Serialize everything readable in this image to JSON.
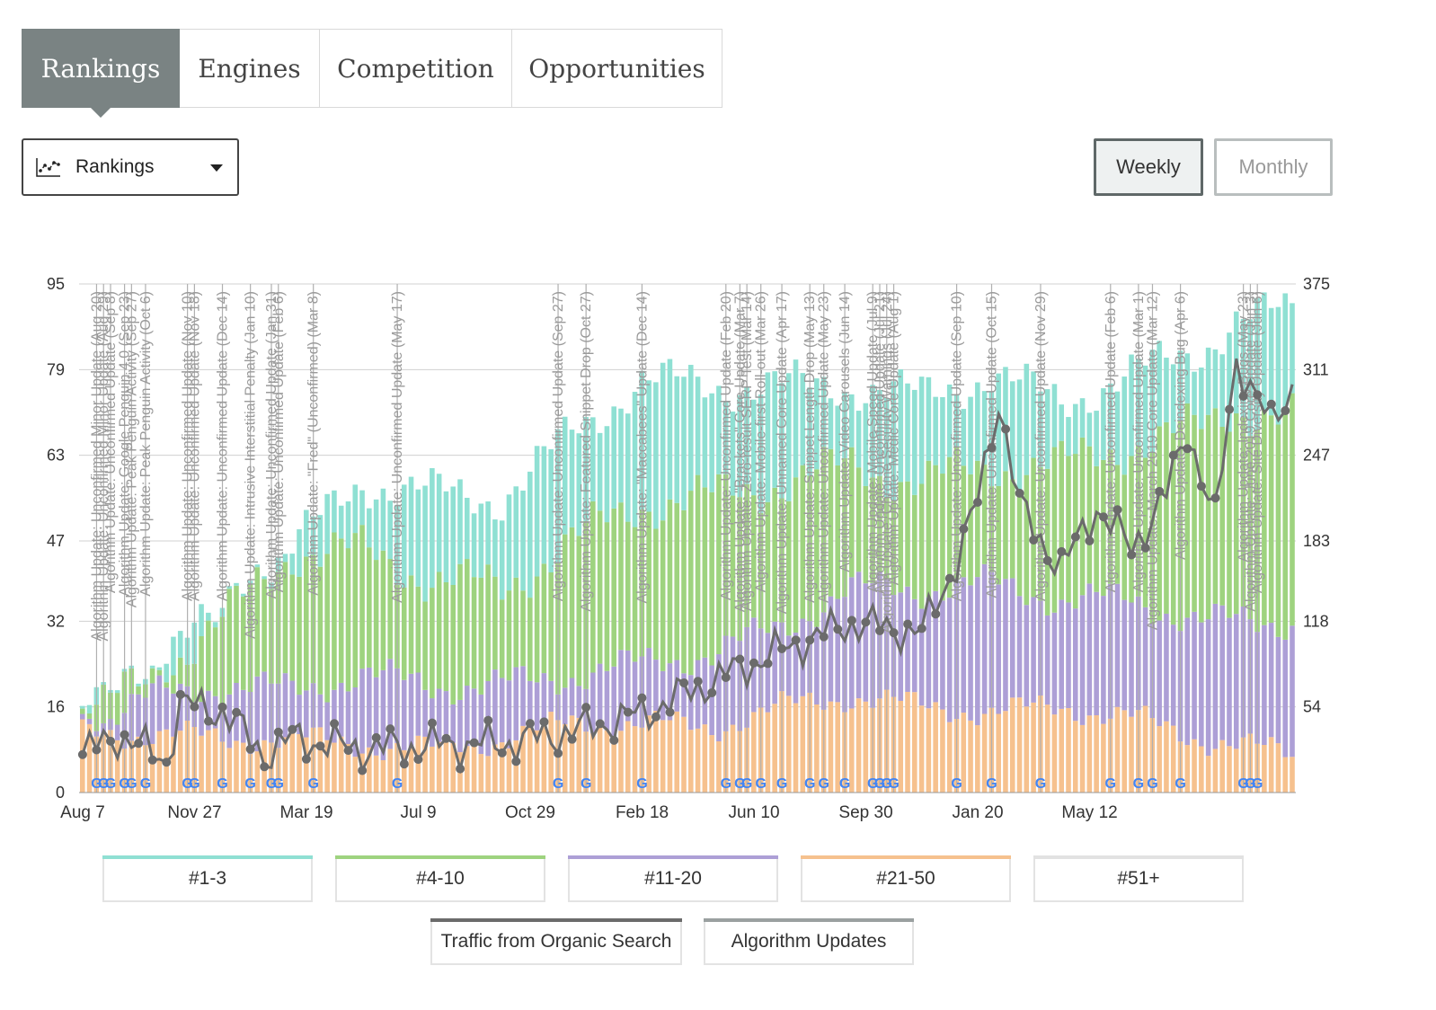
{
  "tabs": [
    {
      "label": "Rankings",
      "active": true
    },
    {
      "label": "Engines",
      "active": false
    },
    {
      "label": "Competition",
      "active": false
    },
    {
      "label": "Opportunities",
      "active": false
    }
  ],
  "dropdown": {
    "label": "Rankings",
    "icon": "line-chart-icon"
  },
  "view_toggle": {
    "weekly_label": "Weekly",
    "monthly_label": "Monthly",
    "selected": "Weekly"
  },
  "colors": {
    "top3": "#8fe0d3",
    "top10": "#9ed37f",
    "top20": "#ad9fd6",
    "top50": "#f6c18e",
    "rest": "#e2e2e2",
    "traffic": "#6b6b6b",
    "algo": "#b0b0b0",
    "grid": "#d0d0d0"
  },
  "legend": {
    "series": [
      {
        "label": "#1-3",
        "color": "#8fe0d3"
      },
      {
        "label": "#4-10",
        "color": "#9ed37f"
      },
      {
        "label": "#11-20",
        "color": "#ad9fd6"
      },
      {
        "label": "#21-50",
        "color": "#f6c18e"
      },
      {
        "label": "#51+",
        "color": "#e2e2e2"
      }
    ],
    "overlays": [
      {
        "label": "Traffic from Organic Search",
        "color": "#6b6b6b"
      },
      {
        "label": "Algorithm Updates",
        "color": "#9aa0a0"
      }
    ]
  },
  "chart_data": {
    "type": "bar",
    "stacked": true,
    "y_left_ticks": [
      "0",
      "16",
      "32",
      "47",
      "63",
      "79",
      "95"
    ],
    "y_right_ticks": [
      "",
      "54",
      "118",
      "183",
      "247",
      "311",
      "375"
    ],
    "ylim_left": [
      0,
      95
    ],
    "ylim_right": [
      0,
      375
    ],
    "x_tick_labels": [
      "Aug 7",
      "Nov 27",
      "Mar 19",
      "Jul 9",
      "Oct 29",
      "Feb 18",
      "Jun 10",
      "Sep 30",
      "Jan 20",
      "May 12"
    ],
    "weeks": 174,
    "series_totals": [
      {
        "week": 0,
        "top50": 11,
        "top20": 12,
        "top10": 13,
        "top3": 14
      },
      {
        "week": 10,
        "top50": 11,
        "top20": 18,
        "top10": 22,
        "top3": 24
      },
      {
        "week": 20,
        "top50": 10,
        "top20": 20,
        "top10": 32,
        "top3": 33
      },
      {
        "week": 30,
        "top50": 10,
        "top20": 19,
        "top10": 45,
        "top3": 46
      },
      {
        "week": 40,
        "top50": 9,
        "top20": 22,
        "top10": 45,
        "top3": 58
      },
      {
        "week": 50,
        "top50": 8,
        "top20": 20,
        "top10": 40,
        "top3": 56
      },
      {
        "week": 60,
        "top50": 10,
        "top20": 20,
        "top10": 38,
        "top3": 55
      },
      {
        "week": 70,
        "top50": 13,
        "top20": 22,
        "top10": 47,
        "top3": 67
      },
      {
        "week": 80,
        "top50": 13,
        "top20": 24,
        "top10": 54,
        "top3": 77
      },
      {
        "week": 90,
        "top50": 12,
        "top20": 26,
        "top10": 55,
        "top3": 76
      },
      {
        "week": 100,
        "top50": 16,
        "top20": 31,
        "top10": 58,
        "top3": 76
      },
      {
        "week": 110,
        "top50": 18,
        "top20": 38,
        "top10": 61,
        "top3": 76
      },
      {
        "week": 120,
        "top50": 16,
        "top20": 38,
        "top10": 58,
        "top3": 74
      },
      {
        "week": 130,
        "top50": 15,
        "top20": 39,
        "top10": 61,
        "top3": 78
      },
      {
        "week": 140,
        "top50": 16,
        "top20": 36,
        "top10": 61,
        "top3": 73
      },
      {
        "week": 150,
        "top50": 14,
        "top20": 36,
        "top10": 65,
        "top3": 78
      },
      {
        "week": 160,
        "top50": 10,
        "top20": 32,
        "top10": 68,
        "top3": 83
      },
      {
        "week": 165,
        "top50": 9,
        "top20": 32,
        "top10": 72,
        "top3": 88
      },
      {
        "week": 173,
        "top50": 7,
        "top20": 32,
        "top10": 70,
        "top3": 90
      }
    ],
    "traffic_series": [
      {
        "week": 0,
        "value": 28
      },
      {
        "week": 5,
        "value": 42
      },
      {
        "week": 12,
        "value": 24
      },
      {
        "week": 14,
        "value": 65
      },
      {
        "week": 20,
        "value": 60
      },
      {
        "week": 26,
        "value": 28
      },
      {
        "week": 30,
        "value": 40
      },
      {
        "week": 40,
        "value": 32
      },
      {
        "week": 50,
        "value": 35
      },
      {
        "week": 60,
        "value": 36
      },
      {
        "week": 70,
        "value": 45
      },
      {
        "week": 80,
        "value": 58
      },
      {
        "week": 90,
        "value": 82
      },
      {
        "week": 100,
        "value": 105
      },
      {
        "week": 110,
        "value": 125
      },
      {
        "week": 120,
        "value": 118
      },
      {
        "week": 125,
        "value": 170
      },
      {
        "week": 128,
        "value": 215
      },
      {
        "week": 131,
        "value": 290
      },
      {
        "week": 134,
        "value": 210
      },
      {
        "week": 140,
        "value": 165
      },
      {
        "week": 145,
        "value": 210
      },
      {
        "week": 150,
        "value": 180
      },
      {
        "week": 155,
        "value": 220
      },
      {
        "week": 158,
        "value": 268
      },
      {
        "week": 162,
        "value": 200
      },
      {
        "week": 165,
        "value": 320
      },
      {
        "week": 170,
        "value": 270
      },
      {
        "week": 173,
        "value": 300
      }
    ],
    "algorithm_update_labels": [
      "Algorithm Update: Unconfirmed Minor Update (Aug 20)",
      "Algorithm Update: Unconfirmed Minor Update (Aug 29)",
      "Algorithm Update: Unconfirmed Update (Sep 8)",
      "Algorithm Update: Google Penguin 4.0 (Sep 23)",
      "Algorithm Update: Peak Penguin Activity (Sep 27)",
      "Algorithm Update: Peak Penguin Activity (Oct 6)",
      "Algorithm Update: Unconfirmed Update (Nov 10)",
      "Algorithm Update: Unconfirmed Update (Nov 18)",
      "Algorithm Update: Unconfirmed Update (Dec 14)",
      "Algorithm Update: Intrusive Interstitial Penalty (Jan 10)",
      "Algorithm Update: Unconfirmed Update (Jan 31)",
      "Algorithm Update: Unconfirmed Update (Feb 6)",
      "Algorithm Update: \"Fred\" (Unconfirmed) (Mar 8)",
      "Algorithm Update: Unconfirmed Update (May 17)",
      "Algorithm Update: Unconfirmed Update (Sep 27)",
      "Algorithm Update: Featured Snippet Drop (Oct 27)",
      "Algorithm Update: \"Maccabees\" Update (Dec 14)",
      "Algorithm Update: Unconfirmed Update (Feb 20)",
      "Algorithm Update: \"Brackets\" Core Update (Mar 7)",
      "Algorithm Update: Zero-result SERP Test (Mar 14)",
      "Algorithm Update: Mobile-first Roll-out (Mar 26)",
      "Algorithm Update: Unnamed Core Update (Apr 17)",
      "Algorithm Update: Snippet Length Drop (May 13)",
      "Algorithm Update: Unconfirmed Update (May 23)",
      "Algorithm Update: Video Carousels (Jun 14)",
      "Algorithm Update: Mobile Speed Update (Jul 9)",
      "Algorithm Update: Chrome Security Warnings (Jul 24)",
      "Algorithm Update: Unconfirmed Update (Jul 21)",
      "Algorithm Update: Medic Core Update (Aug 1)",
      "Algorithm Update: Unconfirmed Update (Sep 10)",
      "Algorithm Update: Unconfirmed Update (Oct 15)",
      "Algorithm Update: Unconfirmed Update (Nov 29)",
      "Algorithm Update: Unconfirmed Update (Feb 6)",
      "Algorithm Update: Unconfirmed Update (Mar 1)",
      "Algorithm Update: March 2019 Core Update (Mar 12)",
      "Algorithm Update: Deindexing Bug (Apr 6)",
      "Algorithm Update: Indexing Bugs (May 23)",
      "Algorithm Update: June 2019 Core Update (Jun 3)",
      "Algorithm Update: Site Diversity Update (Jun 6)"
    ],
    "algorithm_update_weeks": [
      2,
      3,
      4,
      6,
      7,
      9,
      15,
      16,
      20,
      24,
      27,
      28,
      33,
      45,
      68,
      72,
      80,
      92,
      94,
      95,
      97,
      100,
      104,
      106,
      109,
      113,
      115,
      114,
      116,
      125,
      130,
      137,
      147,
      151,
      153,
      157,
      166,
      167,
      168
    ]
  }
}
